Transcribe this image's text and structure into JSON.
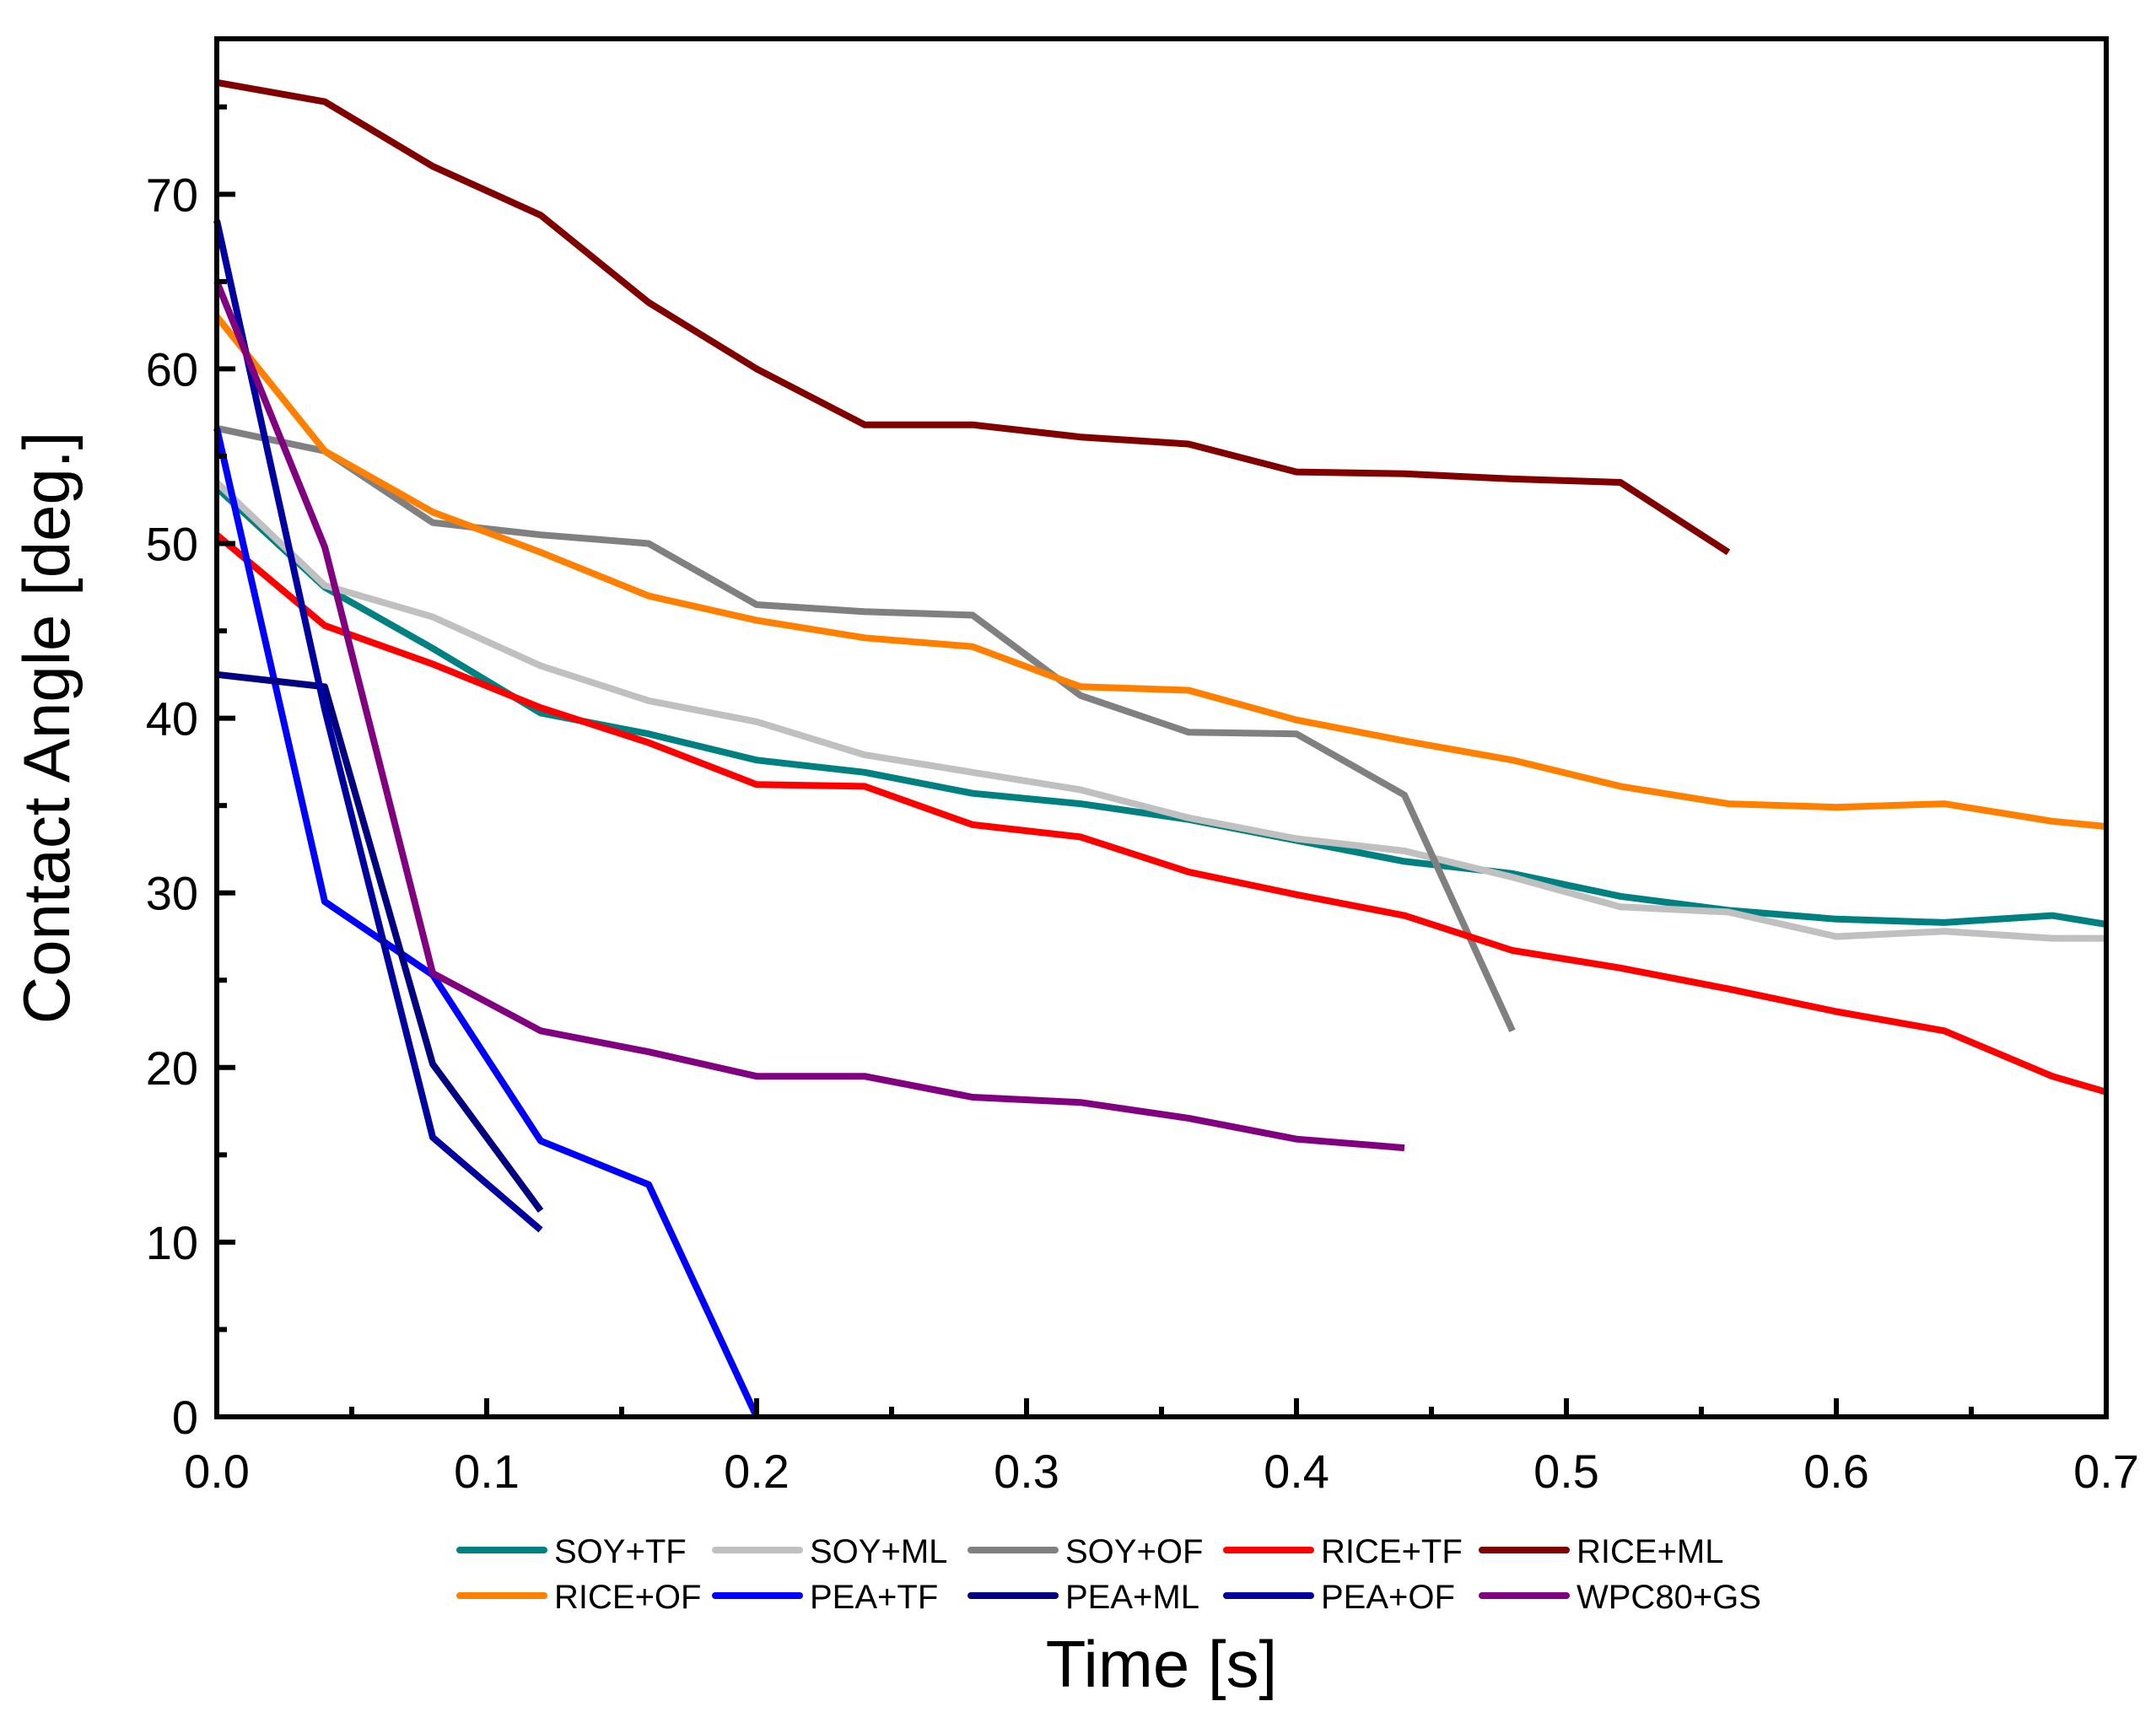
{
  "chart_data": {
    "type": "line",
    "title": "",
    "xlabel": "Time [s]",
    "ylabel": "Contact Angle [deg.]",
    "xlim": [
      0,
      0.7
    ],
    "ylim": [
      0,
      78.9
    ],
    "xticks": [
      "0.0",
      "0.1",
      "0.2",
      "0.3",
      "0.4",
      "0.5",
      "0.6",
      "0.7"
    ],
    "yticks": [
      "0",
      "10",
      "20",
      "30",
      "40",
      "50",
      "60",
      "70"
    ],
    "grid": false,
    "legend_placement": "bottom",
    "series": [
      {
        "name": "SOY+TF",
        "color": "#008080",
        "x": [
          0,
          0.04,
          0.08,
          0.12,
          0.16,
          0.2,
          0.24,
          0.28,
          0.32,
          0.36,
          0.4,
          0.44,
          0.48,
          0.52,
          0.56,
          0.6,
          0.64,
          0.68,
          0.7
        ],
        "y": [
          53.2,
          47.5,
          44.0,
          40.3,
          39.1,
          37.6,
          36.9,
          35.7,
          35.1,
          34.2,
          33.0,
          31.8,
          31.1,
          29.8,
          29.0,
          28.5,
          28.3,
          28.7,
          28.2
        ]
      },
      {
        "name": "SOY+ML",
        "color": "#C0C0C0",
        "x": [
          0,
          0.04,
          0.08,
          0.12,
          0.16,
          0.2,
          0.24,
          0.28,
          0.32,
          0.36,
          0.4,
          0.44,
          0.48,
          0.52,
          0.56,
          0.6,
          0.64,
          0.68,
          0.7
        ],
        "y": [
          53.5,
          47.6,
          45.8,
          43.0,
          41.0,
          39.8,
          37.9,
          36.9,
          35.9,
          34.3,
          33.1,
          32.4,
          30.9,
          29.2,
          28.9,
          27.5,
          27.8,
          27.4,
          27.4
        ]
      },
      {
        "name": "SOY+OF",
        "color": "#808080",
        "x": [
          0,
          0.04,
          0.08,
          0.12,
          0.16,
          0.2,
          0.24,
          0.28,
          0.32,
          0.36,
          0.4,
          0.44,
          0.48
        ],
        "y": [
          56.6,
          55.3,
          51.2,
          50.5,
          50.0,
          46.5,
          46.1,
          45.9,
          41.3,
          39.2,
          39.1,
          35.6,
          22.1
        ]
      },
      {
        "name": "RICE+TF",
        "color": "#FF0000",
        "x": [
          0,
          0.04,
          0.08,
          0.12,
          0.16,
          0.2,
          0.24,
          0.28,
          0.32,
          0.36,
          0.4,
          0.44,
          0.48,
          0.52,
          0.56,
          0.6,
          0.64,
          0.68,
          0.7
        ],
        "y": [
          50.5,
          45.3,
          43.1,
          40.6,
          38.6,
          36.2,
          36.1,
          33.9,
          33.2,
          31.2,
          29.9,
          28.7,
          26.7,
          25.7,
          24.5,
          23.2,
          22.1,
          19.5,
          18.6
        ]
      },
      {
        "name": "RICE+ML",
        "color": "#800000",
        "x": [
          0,
          0.04,
          0.08,
          0.12,
          0.16,
          0.2,
          0.24,
          0.28,
          0.32,
          0.36,
          0.4,
          0.44,
          0.48,
          0.52,
          0.56
        ],
        "y": [
          76.4,
          75.3,
          71.6,
          68.8,
          63.8,
          60.0,
          56.8,
          56.8,
          56.1,
          55.7,
          54.1,
          54.0,
          53.7,
          53.5,
          49.5
        ]
      },
      {
        "name": "RICE+OF",
        "color": "#FF8000",
        "x": [
          0,
          0.04,
          0.08,
          0.12,
          0.16,
          0.2,
          0.24,
          0.28,
          0.32,
          0.36,
          0.4,
          0.44,
          0.48,
          0.52,
          0.56,
          0.6,
          0.64,
          0.68,
          0.7
        ],
        "y": [
          63.0,
          55.3,
          51.8,
          49.5,
          47.0,
          45.6,
          44.6,
          44.1,
          41.8,
          41.6,
          39.9,
          38.7,
          37.6,
          36.1,
          35.1,
          34.9,
          35.1,
          34.1,
          33.8
        ]
      },
      {
        "name": "PEA+TF",
        "color": "#0000FF",
        "x": [
          0,
          0.04,
          0.08,
          0.12,
          0.16,
          0.2
        ],
        "y": [
          56.6,
          29.5,
          25.3,
          15.8,
          13.3,
          0
        ]
      },
      {
        "name": "PEA+ML",
        "color": "#000080",
        "x": [
          0,
          0.04,
          0.08,
          0.12
        ],
        "y": [
          42.5,
          41.8,
          20.2,
          11.8
        ]
      },
      {
        "name": "PEA+OF",
        "color": "#0000A0",
        "x": [
          0,
          0.04,
          0.08,
          0.12
        ],
        "y": [
          68.5,
          40.5,
          16.0,
          10.7
        ]
      },
      {
        "name": "WPC80+GS",
        "color": "#800080",
        "x": [
          0,
          0.04,
          0.08,
          0.12,
          0.16,
          0.2,
          0.24,
          0.28,
          0.32,
          0.36,
          0.4,
          0.44
        ],
        "y": [
          65.0,
          49.8,
          25.4,
          22.1,
          20.9,
          19.5,
          19.5,
          18.3,
          18.0,
          17.1,
          15.9,
          15.4
        ]
      }
    ]
  }
}
